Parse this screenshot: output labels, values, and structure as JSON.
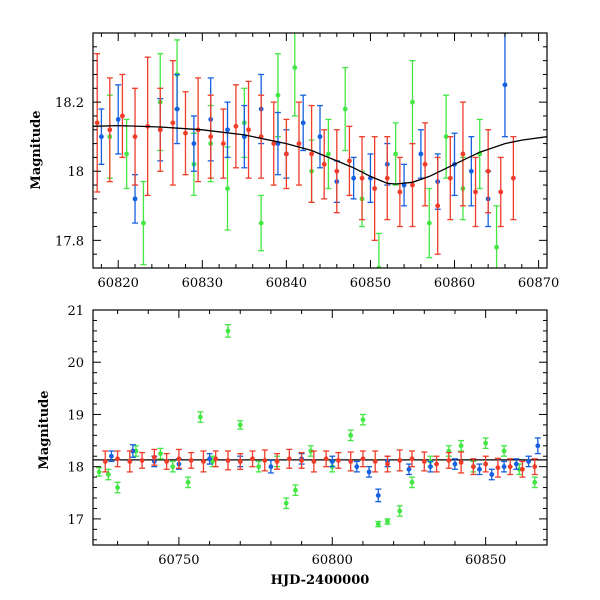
{
  "chart_data": [
    {
      "type": "scatter",
      "title": "",
      "xlabel": "",
      "ylabel": "Magnitude",
      "xlim": [
        60817,
        60871
      ],
      "ylim": [
        18.4,
        17.72
      ],
      "y_inverted": true,
      "xticks": [
        60820,
        60830,
        60840,
        60850,
        60860,
        60870
      ],
      "yticks": [
        17.8,
        18,
        18.2
      ],
      "grid": false,
      "legend": "none",
      "colors": {
        "blue": "#1560e0",
        "green": "#44e644",
        "red": "#f03c28",
        "model": "#000000"
      },
      "series": [
        {
          "color": "blue",
          "marker": "filled-circle-with-errorbar",
          "points": [
            [
              60818,
              18.1,
              0.08
            ],
            [
              60820,
              18.15,
              0.1
            ],
            [
              60822,
              17.92,
              0.07
            ],
            [
              60825,
              18.12,
              0.09
            ],
            [
              60827,
              18.18,
              0.1
            ],
            [
              60829,
              18.08,
              0.08
            ],
            [
              60831,
              18.15,
              0.12
            ],
            [
              60833,
              18.12,
              0.08
            ],
            [
              60835,
              18.1,
              0.09
            ],
            [
              60837,
              18.18,
              0.1
            ],
            [
              60839,
              18.08,
              0.09
            ],
            [
              60840,
              18.05,
              0.07
            ],
            [
              60842,
              18.14,
              0.08
            ],
            [
              60844,
              18.1,
              0.09
            ],
            [
              60846,
              17.97,
              0.06
            ],
            [
              60848,
              17.98,
              0.06
            ],
            [
              60850,
              17.98,
              0.07
            ],
            [
              60852,
              18.02,
              0.06
            ],
            [
              60854,
              17.96,
              0.06
            ],
            [
              60856,
              18.05,
              0.07
            ],
            [
              60858,
              17.97,
              0.08
            ],
            [
              60860,
              18.02,
              0.09
            ],
            [
              60862,
              18.0,
              0.1
            ],
            [
              60864,
              17.92,
              0.08
            ],
            [
              60866,
              18.25,
              0.15
            ]
          ]
        },
        {
          "color": "green",
          "marker": "filled-circle-with-errorbar",
          "points": [
            [
              60819,
              18.1,
              0.12
            ],
            [
              60821,
              18.05,
              0.1
            ],
            [
              60823,
              17.85,
              0.12
            ],
            [
              60825,
              18.2,
              0.14
            ],
            [
              60827,
              18.28,
              0.1
            ],
            [
              60829,
              18.02,
              0.09
            ],
            [
              60831,
              18.08,
              0.11
            ],
            [
              60833,
              17.95,
              0.12
            ],
            [
              60835,
              18.14,
              0.1
            ],
            [
              60837,
              17.85,
              0.08
            ],
            [
              60839,
              18.22,
              0.12
            ],
            [
              60841,
              18.3,
              0.14
            ],
            [
              60843,
              18.0,
              0.09
            ],
            [
              60845,
              18.05,
              0.1
            ],
            [
              60847,
              18.18,
              0.12
            ],
            [
              60849,
              17.92,
              0.08
            ],
            [
              60851,
              17.72,
              0.1
            ],
            [
              60853,
              18.05,
              0.09
            ],
            [
              60855,
              18.2,
              0.12
            ],
            [
              60857,
              17.85,
              0.1
            ],
            [
              60859,
              18.1,
              0.12
            ],
            [
              60861,
              17.95,
              0.09
            ],
            [
              60863,
              18.05,
              0.1
            ],
            [
              60865,
              17.78,
              0.12
            ]
          ]
        },
        {
          "color": "red",
          "marker": "filled-circle-with-errorbar",
          "points": [
            [
              60817.5,
              18.14,
              0.2
            ],
            [
              60819,
              18.12,
              0.15
            ],
            [
              60820.5,
              18.16,
              0.12
            ],
            [
              60822,
              18.1,
              0.14
            ],
            [
              60823.5,
              18.13,
              0.2
            ],
            [
              60825,
              18.12,
              0.12
            ],
            [
              60826.5,
              18.14,
              0.18
            ],
            [
              60828,
              18.11,
              0.12
            ],
            [
              60829.5,
              18.12,
              0.15
            ],
            [
              60831,
              18.1,
              0.12
            ],
            [
              60832.5,
              18.08,
              0.1
            ],
            [
              60834,
              18.13,
              0.12
            ],
            [
              60835.5,
              18.12,
              0.14
            ],
            [
              60837,
              18.1,
              0.12
            ],
            [
              60838.5,
              18.08,
              0.12
            ],
            [
              60840,
              18.05,
              0.1
            ],
            [
              60841.5,
              18.08,
              0.12
            ],
            [
              60843,
              18.05,
              0.14
            ],
            [
              60844.5,
              18.02,
              0.1
            ],
            [
              60846,
              18.0,
              0.12
            ],
            [
              60847.5,
              18.03,
              0.1
            ],
            [
              60849,
              17.98,
              0.12
            ],
            [
              60850.5,
              17.95,
              0.15
            ],
            [
              60852,
              17.98,
              0.12
            ],
            [
              60853.5,
              17.94,
              0.1
            ],
            [
              60855,
              17.96,
              0.12
            ],
            [
              60856.5,
              18.02,
              0.12
            ],
            [
              60858,
              17.9,
              0.14
            ],
            [
              60859.5,
              17.98,
              0.12
            ],
            [
              60861,
              18.05,
              0.15
            ],
            [
              60862.5,
              17.94,
              0.1
            ],
            [
              60864,
              18.0,
              0.12
            ],
            [
              60865.5,
              17.94,
              0.1
            ],
            [
              60867,
              17.98,
              0.12
            ]
          ]
        }
      ],
      "model_curve": [
        [
          60817,
          18.13
        ],
        [
          60820,
          18.132
        ],
        [
          60825,
          18.128
        ],
        [
          60830,
          18.12
        ],
        [
          60835,
          18.105
        ],
        [
          60840,
          18.08
        ],
        [
          60843,
          18.06
        ],
        [
          60846,
          18.03
        ],
        [
          60848,
          18.01
        ],
        [
          60850,
          17.985
        ],
        [
          60852,
          17.965
        ],
        [
          60853,
          17.963
        ],
        [
          60855,
          17.968
        ],
        [
          60857,
          17.985
        ],
        [
          60860,
          18.02
        ],
        [
          60863,
          18.055
        ],
        [
          60866,
          18.08
        ],
        [
          60868,
          18.09
        ],
        [
          60871,
          18.1
        ]
      ]
    },
    {
      "type": "scatter",
      "title": "",
      "xlabel": "HJD-2400000",
      "ylabel": "Magnitude",
      "xlim": [
        60722,
        60870
      ],
      "ylim": [
        21,
        16.5
      ],
      "y_inverted": true,
      "xticks": [
        60750,
        60800,
        60850
      ],
      "yticks": [
        17,
        18,
        19,
        20,
        21
      ],
      "grid": false,
      "legend": "none",
      "reference_line": 18.13,
      "colors": {
        "blue": "#1560e0",
        "green": "#44e644",
        "red": "#f03c28",
        "model": "#000000"
      },
      "series": [
        {
          "color": "blue",
          "marker": "filled-circle-with-errorbar",
          "points": [
            [
              60728,
              18.2,
              0.1
            ],
            [
              60735,
              18.3,
              0.12
            ],
            [
              60742,
              18.1,
              0.1
            ],
            [
              60750,
              18.05,
              0.1
            ],
            [
              60760,
              18.15,
              0.1
            ],
            [
              60770,
              18.1,
              0.1
            ],
            [
              60780,
              18.0,
              0.12
            ],
            [
              60790,
              18.15,
              0.1
            ],
            [
              60800,
              18.1,
              0.1
            ],
            [
              60808,
              18.0,
              0.1
            ],
            [
              60812,
              17.9,
              0.1
            ],
            [
              60815,
              17.45,
              0.12
            ],
            [
              60818,
              18.1,
              0.1
            ],
            [
              60825,
              17.95,
              0.1
            ],
            [
              60832,
              18.0,
              0.1
            ],
            [
              60840,
              18.05,
              0.1
            ],
            [
              60848,
              17.95,
              0.1
            ],
            [
              60852,
              17.85,
              0.1
            ],
            [
              60856,
              18.0,
              0.1
            ],
            [
              60860,
              18.05,
              0.1
            ],
            [
              60864,
              18.1,
              0.1
            ],
            [
              60867,
              18.4,
              0.15
            ]
          ]
        },
        {
          "color": "green",
          "marker": "filled-circle-with-errorbar",
          "points": [
            [
              60724,
              17.9,
              0.08
            ],
            [
              60727,
              17.85,
              0.1
            ],
            [
              60730,
              17.6,
              0.1
            ],
            [
              60736,
              18.3,
              0.1
            ],
            [
              60744,
              18.25,
              0.1
            ],
            [
              60748,
              18.0,
              0.1
            ],
            [
              60753,
              17.7,
              0.1
            ],
            [
              60757,
              18.95,
              0.1
            ],
            [
              60761,
              18.1,
              0.1
            ],
            [
              60766,
              20.6,
              0.12
            ],
            [
              60770,
              18.8,
              0.08
            ],
            [
              60776,
              18.0,
              0.1
            ],
            [
              60782,
              18.1,
              0.1
            ],
            [
              60785,
              17.3,
              0.1
            ],
            [
              60788,
              17.55,
              0.1
            ],
            [
              60793,
              18.3,
              0.1
            ],
            [
              60800,
              18.0,
              0.1
            ],
            [
              60806,
              18.6,
              0.1
            ],
            [
              60810,
              18.9,
              0.1
            ],
            [
              60815,
              16.9,
              0.05
            ],
            [
              60818,
              16.95,
              0.05
            ],
            [
              60822,
              17.15,
              0.1
            ],
            [
              60826,
              17.7,
              0.1
            ],
            [
              60832,
              18.1,
              0.1
            ],
            [
              60838,
              18.3,
              0.1
            ],
            [
              60842,
              18.4,
              0.1
            ],
            [
              60846,
              18.0,
              0.1
            ],
            [
              60850,
              18.45,
              0.1
            ],
            [
              60856,
              18.3,
              0.1
            ],
            [
              60861,
              17.95,
              0.1
            ],
            [
              60866,
              17.7,
              0.1
            ]
          ]
        },
        {
          "color": "red",
          "marker": "filled-circle-with-errorbar",
          "points": [
            [
              60726,
              18.1,
              0.2
            ],
            [
              60730,
              18.15,
              0.15
            ],
            [
              60734,
              18.1,
              0.2
            ],
            [
              60738,
              18.12,
              0.15
            ],
            [
              60742,
              18.18,
              0.15
            ],
            [
              60746,
              18.1,
              0.15
            ],
            [
              60750,
              18.15,
              0.18
            ],
            [
              60754,
              18.12,
              0.15
            ],
            [
              60758,
              18.1,
              0.2
            ],
            [
              60762,
              18.15,
              0.15
            ],
            [
              60766,
              18.12,
              0.18
            ],
            [
              60770,
              18.1,
              0.15
            ],
            [
              60774,
              18.15,
              0.15
            ],
            [
              60778,
              18.12,
              0.2
            ],
            [
              60782,
              18.1,
              0.15
            ],
            [
              60786,
              18.15,
              0.18
            ],
            [
              60790,
              18.12,
              0.15
            ],
            [
              60794,
              18.1,
              0.2
            ],
            [
              60798,
              18.15,
              0.15
            ],
            [
              60802,
              18.12,
              0.15
            ],
            [
              60806,
              18.1,
              0.18
            ],
            [
              60810,
              18.15,
              0.15
            ],
            [
              60814,
              18.1,
              0.2
            ],
            [
              60818,
              18.05,
              0.15
            ],
            [
              60822,
              18.12,
              0.2
            ],
            [
              60826,
              18.15,
              0.15
            ],
            [
              60830,
              18.1,
              0.18
            ],
            [
              60834,
              18.05,
              0.15
            ],
            [
              60838,
              18.12,
              0.15
            ],
            [
              60842,
              18.08,
              0.2
            ],
            [
              60846,
              18.0,
              0.15
            ],
            [
              60850,
              18.05,
              0.15
            ],
            [
              60854,
              17.98,
              0.18
            ],
            [
              60858,
              18.0,
              0.15
            ],
            [
              60862,
              17.95,
              0.15
            ],
            [
              60866,
              18.0,
              0.15
            ]
          ]
        }
      ]
    }
  ]
}
